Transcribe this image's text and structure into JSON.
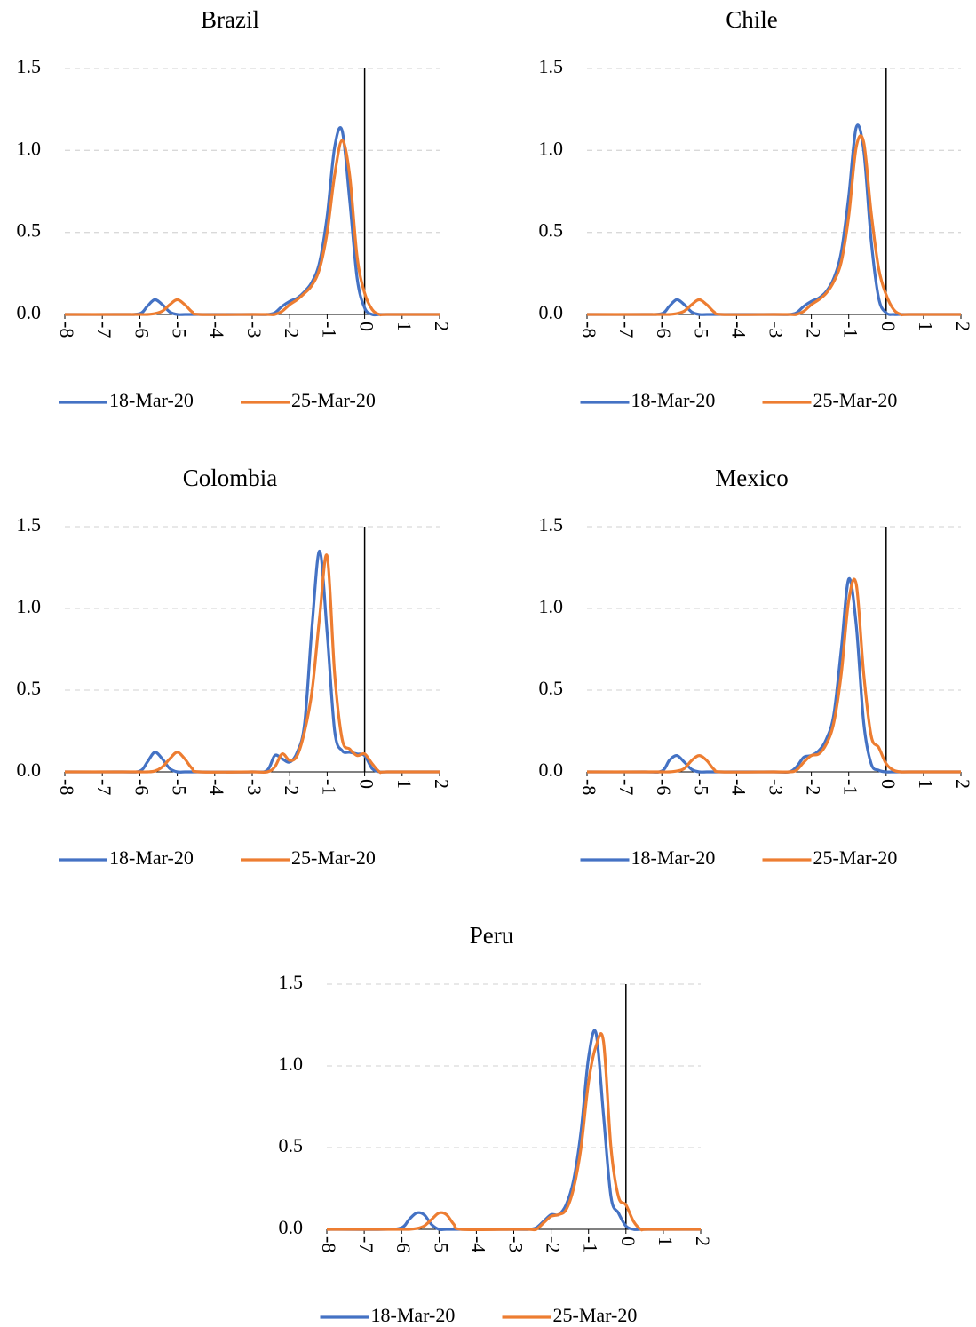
{
  "chart_data": [
    {
      "type": "line",
      "title": "Brazil",
      "x": [
        -8,
        -6.5,
        -6,
        -5.8,
        -5.6,
        -5.4,
        -5.2,
        -5,
        -4.8,
        -4.6,
        -4.4,
        -3,
        -2.6,
        -2.4,
        -2.2,
        -2,
        -1.8,
        -1.6,
        -1.4,
        -1.2,
        -1,
        -0.8,
        -0.6,
        -0.4,
        -0.2,
        0,
        0.2,
        0.4,
        0.6,
        2
      ],
      "series": [
        {
          "name": "18-Mar-20",
          "color": "#4472c4",
          "values": [
            0,
            0,
            0.005,
            0.05,
            0.09,
            0.06,
            0.015,
            0,
            0,
            0,
            0,
            0,
            0,
            0.01,
            0.05,
            0.08,
            0.1,
            0.14,
            0.2,
            0.32,
            0.6,
            1.02,
            1.12,
            0.7,
            0.22,
            0.04,
            0,
            0,
            0,
            0
          ]
        },
        {
          "name": "25-Mar-20",
          "color": "#ed7d31",
          "values": [
            0,
            0,
            0,
            0,
            0.005,
            0.02,
            0.06,
            0.09,
            0.06,
            0.015,
            0,
            0,
            0,
            0,
            0.02,
            0.06,
            0.09,
            0.13,
            0.18,
            0.28,
            0.5,
            0.85,
            1.06,
            0.85,
            0.35,
            0.13,
            0.03,
            0,
            0,
            0
          ]
        }
      ],
      "xlim": [
        -8,
        2
      ],
      "xticks": [
        -8,
        -7,
        -6,
        -5,
        -4,
        -3,
        -2,
        -1,
        0,
        1,
        2
      ],
      "ylim": [
        0,
        1.5
      ],
      "yticks": [
        {
          "value": 0,
          "label": "0.0"
        },
        {
          "value": 0.5,
          "label": "0.5"
        },
        {
          "value": 1,
          "label": "1.0"
        },
        {
          "value": 1.5,
          "label": "1.5"
        }
      ],
      "grid": true,
      "legend": "bottom"
    },
    {
      "type": "line",
      "title": "Chile",
      "x": [
        -8,
        -6.5,
        -6,
        -5.8,
        -5.6,
        -5.4,
        -5.2,
        -5,
        -4.8,
        -4.6,
        -4.4,
        -3,
        -2.6,
        -2.4,
        -2.2,
        -2,
        -1.8,
        -1.6,
        -1.4,
        -1.2,
        -1,
        -0.8,
        -0.6,
        -0.4,
        -0.2,
        0,
        0.2,
        0.4,
        0.6,
        2
      ],
      "series": [
        {
          "name": "18-Mar-20",
          "color": "#4472c4",
          "values": [
            0,
            0,
            0.005,
            0.05,
            0.09,
            0.06,
            0.015,
            0,
            0,
            0,
            0,
            0,
            0,
            0.01,
            0.05,
            0.08,
            0.1,
            0.14,
            0.22,
            0.38,
            0.72,
            1.14,
            1.0,
            0.45,
            0.1,
            0.01,
            0,
            0,
            0,
            0
          ]
        },
        {
          "name": "25-Mar-20",
          "color": "#ed7d31",
          "values": [
            0,
            0,
            0,
            0,
            0.005,
            0.02,
            0.06,
            0.09,
            0.06,
            0.015,
            0,
            0,
            0,
            0,
            0.02,
            0.06,
            0.09,
            0.13,
            0.2,
            0.32,
            0.6,
            1.02,
            1.05,
            0.62,
            0.28,
            0.12,
            0.03,
            0,
            0,
            0
          ]
        }
      ],
      "xlim": [
        -8,
        2
      ],
      "xticks": [
        -8,
        -7,
        -6,
        -5,
        -4,
        -3,
        -2,
        -1,
        0,
        1,
        2
      ],
      "ylim": [
        0,
        1.5
      ],
      "yticks": [
        {
          "value": 0,
          "label": "0.0"
        },
        {
          "value": 0.5,
          "label": "0.5"
        },
        {
          "value": 1,
          "label": "1.0"
        },
        {
          "value": 1.5,
          "label": "1.5"
        }
      ],
      "grid": true,
      "legend": "bottom"
    },
    {
      "type": "line",
      "title": "Colombia",
      "x": [
        -8,
        -6.5,
        -6,
        -5.8,
        -5.6,
        -5.4,
        -5.2,
        -5,
        -4.8,
        -4.6,
        -4.4,
        -3,
        -2.6,
        -2.4,
        -2.2,
        -2,
        -1.8,
        -1.6,
        -1.4,
        -1.2,
        -1,
        -0.8,
        -0.6,
        -0.4,
        -0.2,
        0,
        0.2,
        0.4,
        0.6,
        2
      ],
      "series": [
        {
          "name": "18-Mar-20",
          "color": "#4472c4",
          "values": [
            0,
            0,
            0.005,
            0.06,
            0.12,
            0.08,
            0.02,
            0,
            0,
            0,
            0,
            0,
            0.01,
            0.1,
            0.08,
            0.06,
            0.12,
            0.3,
            0.9,
            1.35,
            0.85,
            0.25,
            0.13,
            0.12,
            0.11,
            0.1,
            0.02,
            0,
            0,
            0
          ]
        },
        {
          "name": "25-Mar-20",
          "color": "#ed7d31",
          "values": [
            0,
            0,
            0,
            0,
            0.005,
            0.03,
            0.08,
            0.12,
            0.08,
            0.02,
            0,
            0,
            0,
            0.03,
            0.11,
            0.07,
            0.1,
            0.25,
            0.5,
            0.95,
            1.32,
            0.6,
            0.2,
            0.14,
            0.1,
            0.11,
            0.05,
            0,
            0,
            0
          ]
        }
      ],
      "xlim": [
        -8,
        2
      ],
      "xticks": [
        -8,
        -7,
        -6,
        -5,
        -4,
        -3,
        -2,
        -1,
        0,
        1,
        2
      ],
      "ylim": [
        0,
        1.5
      ],
      "yticks": [
        {
          "value": 0,
          "label": "0.0"
        },
        {
          "value": 0.5,
          "label": "0.5"
        },
        {
          "value": 1,
          "label": "1.0"
        },
        {
          "value": 1.5,
          "label": "1.5"
        }
      ],
      "grid": true,
      "legend": "bottom"
    },
    {
      "type": "line",
      "title": "Mexico",
      "x": [
        -8,
        -6.5,
        -6,
        -5.8,
        -5.6,
        -5.4,
        -5.2,
        -5,
        -4.8,
        -4.6,
        -4.4,
        -3,
        -2.6,
        -2.4,
        -2.2,
        -2,
        -1.8,
        -1.6,
        -1.4,
        -1.2,
        -1,
        -0.8,
        -0.6,
        -0.4,
        -0.2,
        0,
        0.2,
        0.4,
        0.6,
        2
      ],
      "series": [
        {
          "name": "18-Mar-20",
          "color": "#4472c4",
          "values": [
            0,
            0,
            0.005,
            0.07,
            0.1,
            0.06,
            0.015,
            0,
            0,
            0,
            0,
            0,
            0,
            0.03,
            0.09,
            0.1,
            0.13,
            0.2,
            0.35,
            0.75,
            1.18,
            0.9,
            0.3,
            0.05,
            0.01,
            0,
            0,
            0,
            0,
            0
          ]
        },
        {
          "name": "25-Mar-20",
          "color": "#ed7d31",
          "values": [
            0,
            0,
            0,
            0,
            0.005,
            0.02,
            0.07,
            0.1,
            0.07,
            0.015,
            0,
            0,
            0,
            0.01,
            0.06,
            0.1,
            0.11,
            0.17,
            0.3,
            0.6,
            1.05,
            1.15,
            0.6,
            0.22,
            0.15,
            0.05,
            0.01,
            0,
            0,
            0
          ]
        }
      ],
      "xlim": [
        -8,
        2
      ],
      "xticks": [
        -8,
        -7,
        -6,
        -5,
        -4,
        -3,
        -2,
        -1,
        0,
        1,
        2
      ],
      "ylim": [
        0,
        1.5
      ],
      "yticks": [
        {
          "value": 0,
          "label": "0.0"
        },
        {
          "value": 0.5,
          "label": "0.5"
        },
        {
          "value": 1,
          "label": "1.0"
        },
        {
          "value": 1.5,
          "label": "1.5"
        }
      ],
      "grid": true,
      "legend": "bottom"
    },
    {
      "type": "line",
      "title": "Peru",
      "x": [
        -8,
        -6.5,
        -6,
        -5.8,
        -5.6,
        -5.4,
        -5.2,
        -5,
        -4.8,
        -4.6,
        -4.4,
        -3,
        -2.6,
        -2.4,
        -2.2,
        -2,
        -1.8,
        -1.6,
        -1.4,
        -1.2,
        -1,
        -0.8,
        -0.6,
        -0.4,
        -0.2,
        0,
        0.2,
        0.4,
        0.6,
        2
      ],
      "series": [
        {
          "name": "18-Mar-20",
          "color": "#4472c4",
          "values": [
            0,
            0,
            0.01,
            0.06,
            0.1,
            0.09,
            0.03,
            0,
            0,
            0,
            0,
            0,
            0,
            0.01,
            0.05,
            0.09,
            0.09,
            0.15,
            0.3,
            0.6,
            1.05,
            1.2,
            0.7,
            0.2,
            0.1,
            0.02,
            0,
            0,
            0,
            0
          ]
        },
        {
          "name": "25-Mar-20",
          "color": "#ed7d31",
          "values": [
            0,
            0,
            0,
            0,
            0.005,
            0.02,
            0.06,
            0.1,
            0.09,
            0.03,
            0,
            0,
            0,
            0,
            0.04,
            0.08,
            0.09,
            0.12,
            0.25,
            0.5,
            0.9,
            1.12,
            1.15,
            0.5,
            0.2,
            0.15,
            0.05,
            0,
            0,
            0
          ]
        }
      ],
      "xlim": [
        -8,
        2
      ],
      "xticks": [
        -8,
        -7,
        -6,
        -5,
        -4,
        -3,
        -2,
        -1,
        0,
        1,
        2
      ],
      "ylim": [
        0,
        1.5
      ],
      "yticks": [
        {
          "value": 0,
          "label": "0.0"
        },
        {
          "value": 0.5,
          "label": "0.5"
        },
        {
          "value": 1,
          "label": "1.0"
        },
        {
          "value": 1.5,
          "label": "1.5"
        }
      ],
      "grid": true,
      "legend": "bottom"
    }
  ]
}
